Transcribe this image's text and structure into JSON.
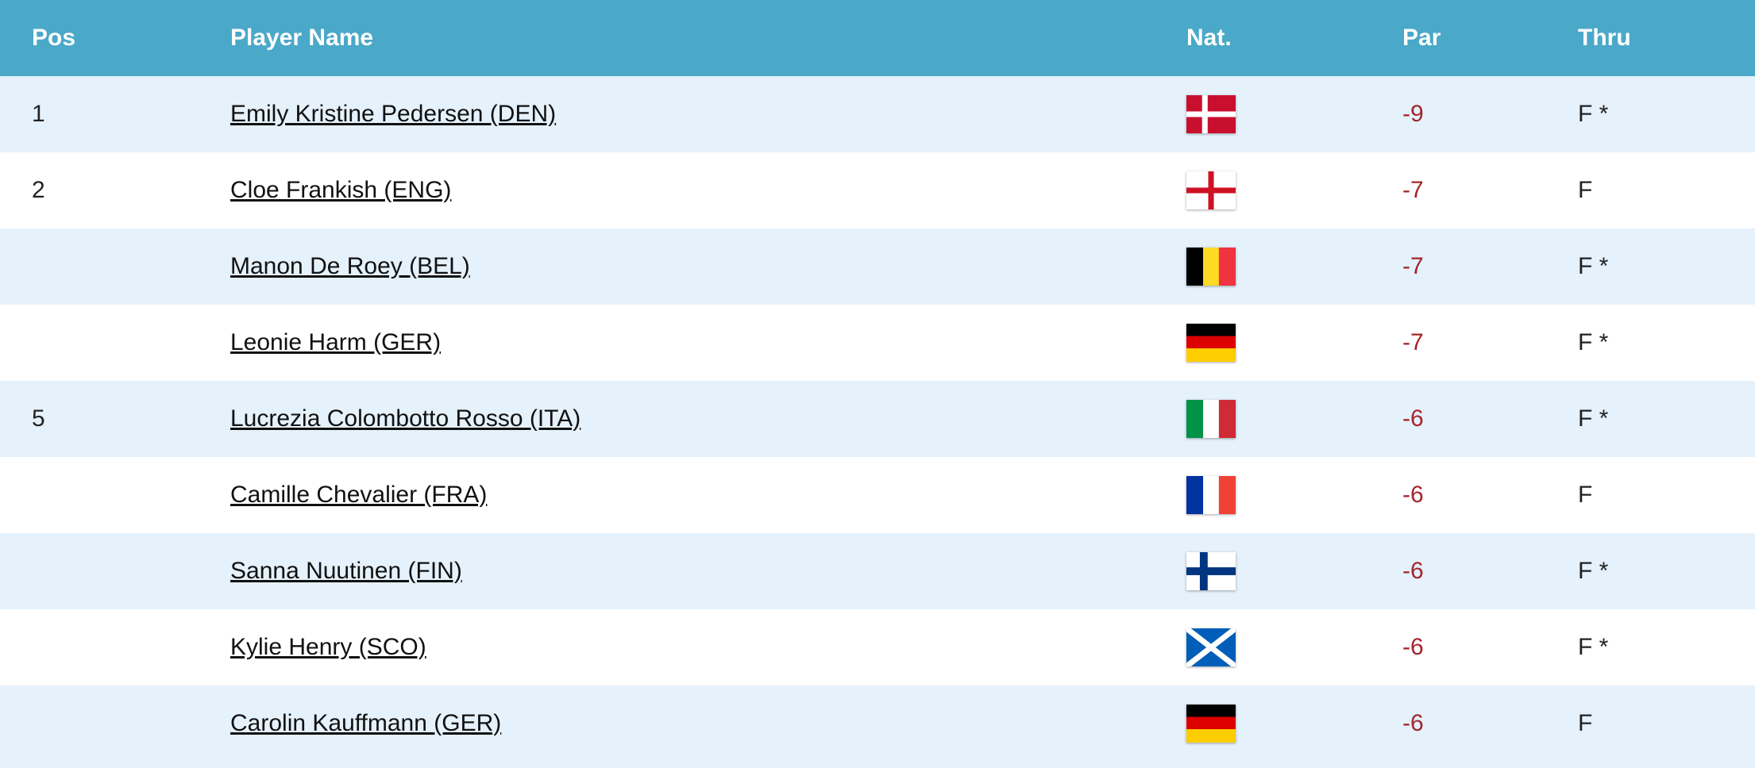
{
  "table": {
    "header": [
      "Pos",
      "Player Name",
      "Nat.",
      "Par",
      "Thru"
    ],
    "rows": [
      {
        "pos": 1,
        "name": "Emily Kristine Pedersen (DEN)",
        "par": -9,
        "thru": "F *"
      },
      {
        "pos": 2,
        "name": "Cloe Frankish (ENG)",
        "par": -7,
        "thru": "F"
      },
      {
        "name": "Manon De Roey (BEL)",
        "par": -7,
        "thru": "F *"
      },
      {
        "name": "Leonie Harm (GER)",
        "par": -7,
        "thru": "F *"
      },
      {
        "pos": 5,
        "name": "Lucrezia Colombotto Rosso (ITA)",
        "par": -6,
        "thru": "F *"
      },
      {
        "name": "Camille Chevalier (FRA)",
        "par": -6,
        "thru": "F"
      },
      {
        "name": "Sanna Nuutinen (FIN)",
        "par": -6,
        "thru": "F *"
      },
      {
        "name": "Kylie Henry (SCO)",
        "par": -6,
        "thru": "F *"
      },
      {
        "name": "Carolin Kauffmann (GER)",
        "par": -6,
        "thru": "F"
      }
    ]
  }
}
